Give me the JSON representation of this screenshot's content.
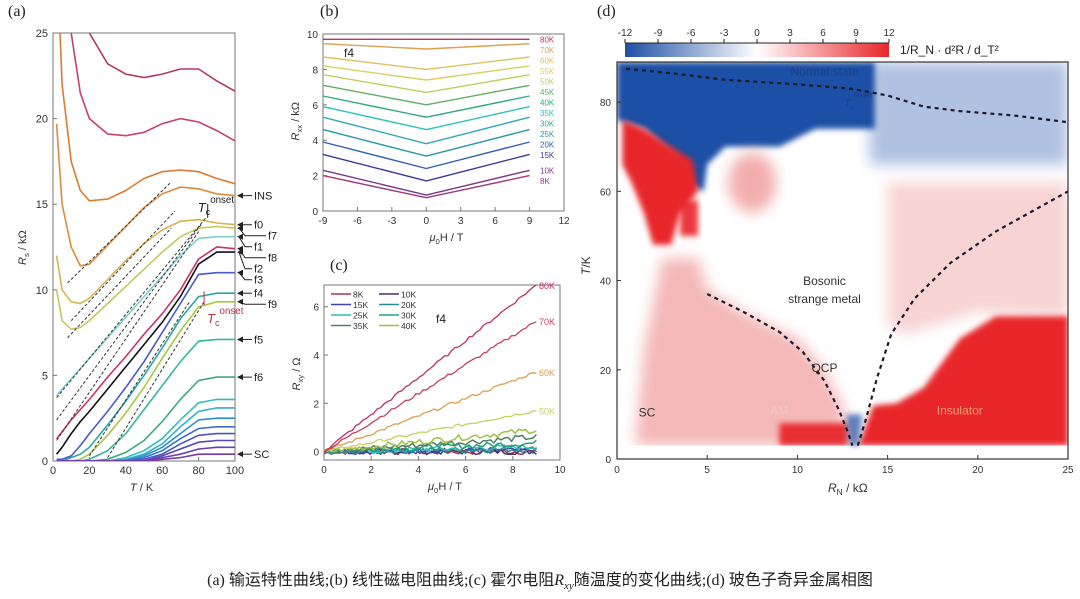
{
  "caption": {
    "part1": "(a) 输运特性曲线;(b) 线性磁电阻曲线;(c) 霍尔电阻",
    "sym": "R",
    "sub": "xy",
    "part2": "随温度的变化曲线;(d) 玻色子奇异金属相图"
  },
  "chart_data": [
    {
      "panel": "(a)",
      "type": "line",
      "xlabel": {
        "sym": "T",
        "rest": " / K"
      },
      "ylabel": {
        "sym": "R",
        "sub": "s",
        "rest": " / kΩ"
      },
      "xlim": [
        0,
        100
      ],
      "ylim": [
        0,
        25
      ],
      "xticks": [
        0,
        20,
        40,
        60,
        80,
        100
      ],
      "yticks": [
        0,
        5,
        10,
        15,
        20,
        25
      ],
      "x": [
        2,
        5,
        10,
        15,
        20,
        30,
        40,
        50,
        60,
        70,
        80,
        90,
        100
      ],
      "series": [
        {
          "color": "#b03a5e",
          "values": [
            null,
            null,
            null,
            28,
            25,
            23.2,
            22.6,
            22.4,
            22.6,
            22.9,
            22.9,
            22.2,
            21.6
          ]
        },
        {
          "color": "#c8406a",
          "values": [
            null,
            null,
            25,
            21.5,
            20,
            19.1,
            19,
            19.2,
            19.7,
            20,
            19.8,
            19.3,
            18.7
          ]
        },
        {
          "color": "#e07a30",
          "values": [
            30,
            22,
            17.5,
            15.8,
            15.2,
            15.3,
            15.8,
            16.5,
            16.9,
            17,
            16.9,
            16.5,
            16.2
          ]
        },
        {
          "name": "INS",
          "color": "#e08a3a",
          "values": [
            19.7,
            15,
            12.5,
            11.4,
            11.5,
            12.6,
            13.7,
            14.8,
            15.6,
            16,
            15.9,
            15.6,
            15.5
          ]
        },
        {
          "name": "f0",
          "color": "#d9b24a",
          "values": [
            12,
            10,
            9.3,
            9.2,
            9.5,
            10.6,
            11.7,
            12.7,
            13.5,
            14,
            14.1,
            13.9,
            13.8
          ]
        },
        {
          "name": "f7",
          "color": "#c6c85a",
          "values": [
            10,
            8.2,
            7.7,
            7.8,
            8.2,
            9.2,
            10.2,
            11.2,
            12.2,
            13.1,
            13.6,
            13.7,
            13.6
          ]
        },
        {
          "name": "f1",
          "color": "#7ccfd0",
          "values": [
            3.8,
            4.2,
            4.8,
            5.4,
            6.0,
            7.2,
            8.4,
            9.6,
            10.8,
            12.0,
            13.0,
            13.1,
            13.1
          ]
        },
        {
          "name": "f8",
          "color": "#d0306a",
          "values": [
            1.3,
            1.7,
            2.4,
            3.0,
            3.6,
            4.9,
            6.1,
            7.4,
            8.6,
            10.0,
            11.8,
            12.5,
            12.4
          ]
        },
        {
          "name": "f2",
          "color": "#111111",
          "values": [
            0.4,
            0.8,
            1.6,
            2.3,
            2.9,
            4.2,
            5.5,
            6.8,
            8.1,
            9.6,
            11.5,
            12.2,
            12.2
          ]
        },
        {
          "name": "f3",
          "color": "#4a5ac8",
          "values": [
            0.1,
            0.1,
            0.3,
            0.9,
            1.6,
            2.9,
            4.3,
            5.8,
            7.5,
            9.2,
            10.9,
            11.0,
            11.0
          ]
        },
        {
          "name": "f4",
          "color": "#2aa8a0",
          "values": [
            0,
            0,
            0.2,
            0.4,
            0.8,
            2.1,
            3.5,
            5.0,
            6.6,
            8.3,
            9.6,
            9.8,
            9.8
          ]
        },
        {
          "name": "f9",
          "color": "#a8c840",
          "values": [
            0,
            0,
            0,
            0.1,
            0.4,
            1.5,
            2.8,
            4.3,
            6.0,
            7.6,
            9.0,
            9.3,
            9.3
          ]
        },
        {
          "name": "f5",
          "color": "#30b8a0",
          "values": [
            0,
            0,
            0,
            0,
            0.1,
            0.6,
            1.6,
            3.0,
            4.4,
            5.8,
            7.0,
            7.1,
            7.1
          ]
        },
        {
          "name": "f6",
          "color": "#40a880",
          "values": [
            0,
            0,
            0,
            0,
            0,
            0.1,
            0.5,
            1.2,
            2.3,
            3.6,
            4.7,
            4.9,
            4.9
          ]
        },
        {
          "color": "#30c0b8",
          "values": [
            0,
            0,
            0,
            0,
            0,
            0,
            0.2,
            0.6,
            1.3,
            2.4,
            3.4,
            3.6,
            3.6
          ]
        },
        {
          "color": "#30b0c8",
          "values": [
            0,
            0,
            0,
            0,
            0,
            0,
            0.1,
            0.4,
            1.0,
            2.0,
            2.9,
            3.1,
            3.1
          ]
        },
        {
          "color": "#3090c8",
          "values": [
            0,
            0,
            0,
            0,
            0,
            0,
            0.05,
            0.3,
            0.8,
            1.6,
            2.4,
            2.5,
            2.5
          ]
        },
        {
          "color": "#3a70c8",
          "values": [
            0,
            0,
            0,
            0,
            0,
            0,
            0,
            0.2,
            0.6,
            1.3,
            1.9,
            2.0,
            2.0
          ]
        },
        {
          "color": "#4a58c0",
          "values": [
            0,
            0,
            0,
            0,
            0,
            0,
            0,
            0.1,
            0.4,
            1.0,
            1.5,
            1.6,
            1.6
          ]
        },
        {
          "color": "#5a48b8",
          "values": [
            0,
            0,
            0,
            0,
            0,
            0,
            0,
            0,
            0.3,
            0.7,
            1.1,
            1.2,
            1.2
          ]
        },
        {
          "color": "#6a40b0",
          "values": [
            0,
            0,
            0,
            0,
            0,
            0,
            0,
            0,
            0.2,
            0.4,
            0.7,
            0.8,
            0.8
          ]
        },
        {
          "name": "SC",
          "color": "#7a38a8",
          "values": [
            0,
            0,
            0,
            0,
            0,
            0,
            0,
            0,
            0.1,
            0.2,
            0.4,
            0.4,
            0.4
          ]
        }
      ],
      "fit_lines": [
        {
          "x": [
            8,
            65
          ],
          "y": [
            10.4,
            16.3
          ]
        },
        {
          "x": [
            10,
            67
          ],
          "y": [
            8.2,
            14.6
          ]
        },
        {
          "x": [
            8,
            65
          ],
          "y": [
            7.2,
            13.6
          ]
        },
        {
          "x": [
            2,
            84
          ],
          "y": [
            3.7,
            14.2
          ]
        },
        {
          "x": [
            2,
            82
          ],
          "y": [
            2.4,
            13.9
          ]
        },
        {
          "x": [
            2,
            80
          ],
          "y": [
            1.2,
            13.4
          ]
        },
        {
          "x": [
            20,
            75
          ],
          "y": [
            0.3,
            9.3
          ]
        },
        {
          "x": [
            30,
            83
          ],
          "y": [
            0.2,
            9.3
          ]
        }
      ],
      "annotations": [
        {
          "sym": "T",
          "sub": "c",
          "sup": "onset",
          "color": "#222222",
          "x": 85,
          "y": 14.2
        },
        {
          "sym": "T",
          "sub": "c",
          "sup": "onset",
          "color": "#c0304a",
          "x": 83,
          "y": 9.1
        }
      ]
    },
    {
      "panel": "(b)",
      "type": "line",
      "xlabel": {
        "sym": "μ",
        "sub": "0",
        "rest": "H / T"
      },
      "ylabel": {
        "sym": "R",
        "sub": "xx",
        "rest": " / kΩ"
      },
      "xlim": [
        -9,
        12
      ],
      "ylim": [
        0,
        10
      ],
      "xticks": [
        -9,
        -6,
        -3,
        0,
        3,
        6,
        9,
        12
      ],
      "yticks": [
        0,
        2,
        4,
        6,
        8,
        10
      ],
      "sample_label": "f4",
      "x": [
        -9,
        0,
        9
      ],
      "series": [
        {
          "name": "80K",
          "color": "#c0306a",
          "values": [
            9.7,
            9.7,
            9.7
          ]
        },
        {
          "name": "70K",
          "color": "#e0a050",
          "values": [
            9.45,
            9.15,
            9.45
          ]
        },
        {
          "name": "60K",
          "color": "#e0c060",
          "values": [
            8.7,
            8.0,
            8.7
          ]
        },
        {
          "name": "55K",
          "color": "#d8d060",
          "values": [
            8.2,
            7.4,
            8.2
          ]
        },
        {
          "name": "50K",
          "color": "#c0d060",
          "values": [
            7.7,
            6.7,
            7.7
          ]
        },
        {
          "name": "45K",
          "color": "#60b060",
          "values": [
            7.1,
            6.0,
            7.1
          ]
        },
        {
          "name": "40K",
          "color": "#30a880",
          "values": [
            6.5,
            5.3,
            6.5
          ]
        },
        {
          "name": "35K",
          "color": "#30c0c0",
          "values": [
            5.9,
            4.6,
            5.9
          ]
        },
        {
          "name": "30K",
          "color": "#30a8b8",
          "values": [
            5.3,
            3.8,
            5.3
          ]
        },
        {
          "name": "25K",
          "color": "#2a98a8",
          "values": [
            4.6,
            3.1,
            4.6
          ]
        },
        {
          "name": "20K",
          "color": "#3060b0",
          "values": [
            3.9,
            2.4,
            3.9
          ]
        },
        {
          "name": "15K",
          "color": "#403898",
          "values": [
            3.2,
            1.7,
            3.2
          ]
        },
        {
          "name": "10K",
          "color": "#7a3a8a",
          "values": [
            2.3,
            0.9,
            2.3
          ]
        },
        {
          "name": "8K",
          "color": "#a03a80",
          "values": [
            2.0,
            0.75,
            2.0
          ]
        }
      ]
    },
    {
      "panel": "(c)",
      "type": "line",
      "xlabel": {
        "sym": "μ",
        "sub": "0",
        "rest": "H / T"
      },
      "ylabel": {
        "sym": "R",
        "sub": "xy",
        "rest": " / Ω"
      },
      "xlim": [
        0,
        10
      ],
      "ylim": [
        -0.35,
        6.9
      ],
      "xticks": [
        0,
        2,
        4,
        6,
        8,
        10
      ],
      "yticks": [
        0,
        2,
        4,
        6
      ],
      "sample_label": "f4",
      "x": [
        0,
        9
      ],
      "series": [
        {
          "name": "80K",
          "color": "#c0306a",
          "values": [
            0,
            6.9
          ],
          "labeled": true
        },
        {
          "name": "70K",
          "color": "#c84060",
          "values": [
            0,
            5.4
          ],
          "labeled": true
        },
        {
          "name": "60K",
          "color": "#d8a050",
          "values": [
            0,
            3.3
          ],
          "labeled": true
        },
        {
          "name": "50K",
          "color": "#c8d060",
          "values": [
            0,
            1.7
          ],
          "labeled": true
        },
        {
          "name": "40K",
          "color": "#a0c040",
          "values": [
            0,
            0.9
          ],
          "legend": true
        },
        {
          "name": "35K",
          "color": "#508060",
          "values": [
            0,
            0.6
          ],
          "legend": true
        },
        {
          "name": "30K",
          "color": "#20a080",
          "values": [
            0,
            0.35
          ],
          "legend": true
        },
        {
          "name": "25K",
          "color": "#30c0b0",
          "values": [
            0,
            0.2
          ],
          "legend": true
        },
        {
          "name": "20K",
          "color": "#2a8a9a",
          "values": [
            0,
            0.1
          ],
          "legend": true
        },
        {
          "name": "15K",
          "color": "#4040b0",
          "values": [
            0,
            0.05
          ],
          "legend": true
        },
        {
          "name": "10K",
          "color": "#503060",
          "values": [
            0,
            0.0
          ],
          "legend": true
        },
        {
          "name": "8K",
          "color": "#b03050",
          "values": [
            0,
            0.0
          ],
          "legend": true
        }
      ]
    },
    {
      "panel": "(d)",
      "type": "heatmap",
      "xlabel": {
        "sym": "R",
        "sub": "N",
        "rest": " / kΩ"
      },
      "ylabel": {
        "sym": "T",
        "rest": "/K"
      },
      "xlim": [
        0,
        25
      ],
      "ylim": [
        0,
        89
      ],
      "xticks": [
        0,
        5,
        10,
        15,
        20,
        25
      ],
      "yticks": [
        0,
        20,
        40,
        60,
        80
      ],
      "colorbar": {
        "label": "1/R_N · d²R / d_T²",
        "range": [
          -12,
          12
        ],
        "ticks": [
          -12,
          -9,
          -6,
          -3,
          0,
          3,
          6,
          9,
          12
        ],
        "colors": [
          "#1e4fa6",
          "#ffffff",
          "#e8262a"
        ],
        "position": "top"
      },
      "regions": [
        {
          "label": "Normal state",
          "x": 11.5,
          "y": 86,
          "color": "#1e3f86"
        },
        {
          "label": "Bosonic",
          "x": 11.5,
          "y": 39,
          "color": "#333333"
        },
        {
          "label": "strange metal",
          "x": 11.5,
          "y": 35,
          "color": "#333333"
        },
        {
          "label": "QCP",
          "x": 11.5,
          "y": 19.5,
          "color": "#333333"
        },
        {
          "label": "SC",
          "x": 1.2,
          "y": 9.5,
          "color": "#333333"
        },
        {
          "label": "AM",
          "x": 9,
          "y": 10,
          "color": "#f4c6c6"
        },
        {
          "label": "Insulator",
          "x": 19,
          "y": 10,
          "color": "#e8a070"
        }
      ],
      "tc_label": {
        "sym": "T",
        "sub": "c",
        "sup": "onset",
        "x": 12.6,
        "y": 79
      },
      "boundaries": [
        {
          "x": [
            0.5,
            3,
            6,
            10,
            13,
            15,
            17,
            19,
            22,
            25
          ],
          "y": [
            87.5,
            86.5,
            85,
            84,
            83,
            81.5,
            79,
            78,
            77,
            75.5
          ]
        },
        {
          "x": [
            5,
            7,
            9,
            10.3,
            11.5,
            12.3,
            12.8,
            13.05
          ],
          "y": [
            37,
            33,
            28.5,
            24,
            17.5,
            11,
            6,
            3
          ]
        },
        {
          "x": [
            13.35,
            13.8,
            14.4,
            15.2,
            16.5,
            18.5,
            21,
            25
          ],
          "y": [
            3,
            9,
            18,
            28,
            36,
            44,
            51,
            60
          ]
        }
      ]
    }
  ]
}
